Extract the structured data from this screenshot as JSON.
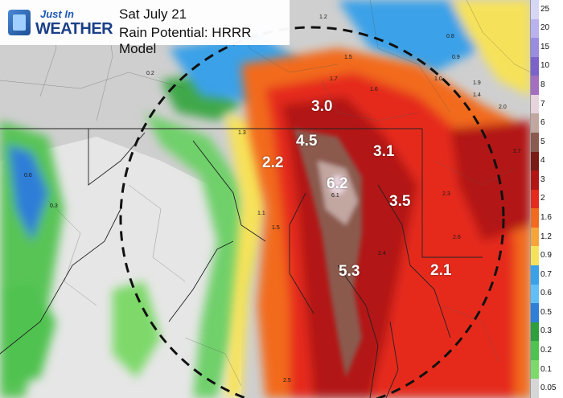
{
  "header": {
    "logo_line1": "Just In",
    "logo_line2": "WEATHER",
    "date": "Sat July 21",
    "subtitle": "Rain Potential: HRRR Model"
  },
  "legend": {
    "entries": [
      {
        "label": "25",
        "color": "#d6d6f5"
      },
      {
        "label": "20",
        "color": "#b9b2ee"
      },
      {
        "label": "15",
        "color": "#9a8de0"
      },
      {
        "label": "10",
        "color": "#7c63c9"
      },
      {
        "label": "8",
        "color": "#a36fbf"
      },
      {
        "label": "7",
        "color": "#e7d3dc"
      },
      {
        "label": "6",
        "color": "#c2a6a0"
      },
      {
        "label": "5",
        "color": "#8b5a4e"
      },
      {
        "label": "4",
        "color": "#7a1a14"
      },
      {
        "label": "3",
        "color": "#b31515"
      },
      {
        "label": "2",
        "color": "#e52b1b"
      },
      {
        "label": "1.6",
        "color": "#f26a1e"
      },
      {
        "label": "1.2",
        "color": "#f7a43a"
      },
      {
        "label": "0.9",
        "color": "#f6e25a"
      },
      {
        "label": "0.7",
        "color": "#3aa1e8"
      },
      {
        "label": "0.6",
        "color": "#62bff5"
      },
      {
        "label": "0.5",
        "color": "#2f7ed8"
      },
      {
        "label": "0.3",
        "color": "#2f9e3c"
      },
      {
        "label": "0.2",
        "color": "#4fc24f"
      },
      {
        "label": "0.1",
        "color": "#7ed96b"
      },
      {
        "label": "0.05",
        "color": "#d6d6d6"
      }
    ]
  },
  "totals": [
    {
      "label": "3.0"
    },
    {
      "label": "4.5"
    },
    {
      "label": "3.1"
    },
    {
      "label": "2.2"
    },
    {
      "label": "6.2"
    },
    {
      "label": "3.5"
    },
    {
      "label": "5.3"
    },
    {
      "label": "2.1"
    }
  ],
  "small_values": [
    "1.2",
    "1.5",
    "0.8",
    "0.9",
    "1.0",
    "2.0",
    "1.9",
    "1.6",
    "1.7",
    "1.4",
    "1.1",
    "0.2",
    "0.3",
    "0.6",
    "2.3",
    "2.4",
    "2.7",
    "2.6",
    "6.1",
    "1.3",
    "1.5",
    "2.5"
  ]
}
